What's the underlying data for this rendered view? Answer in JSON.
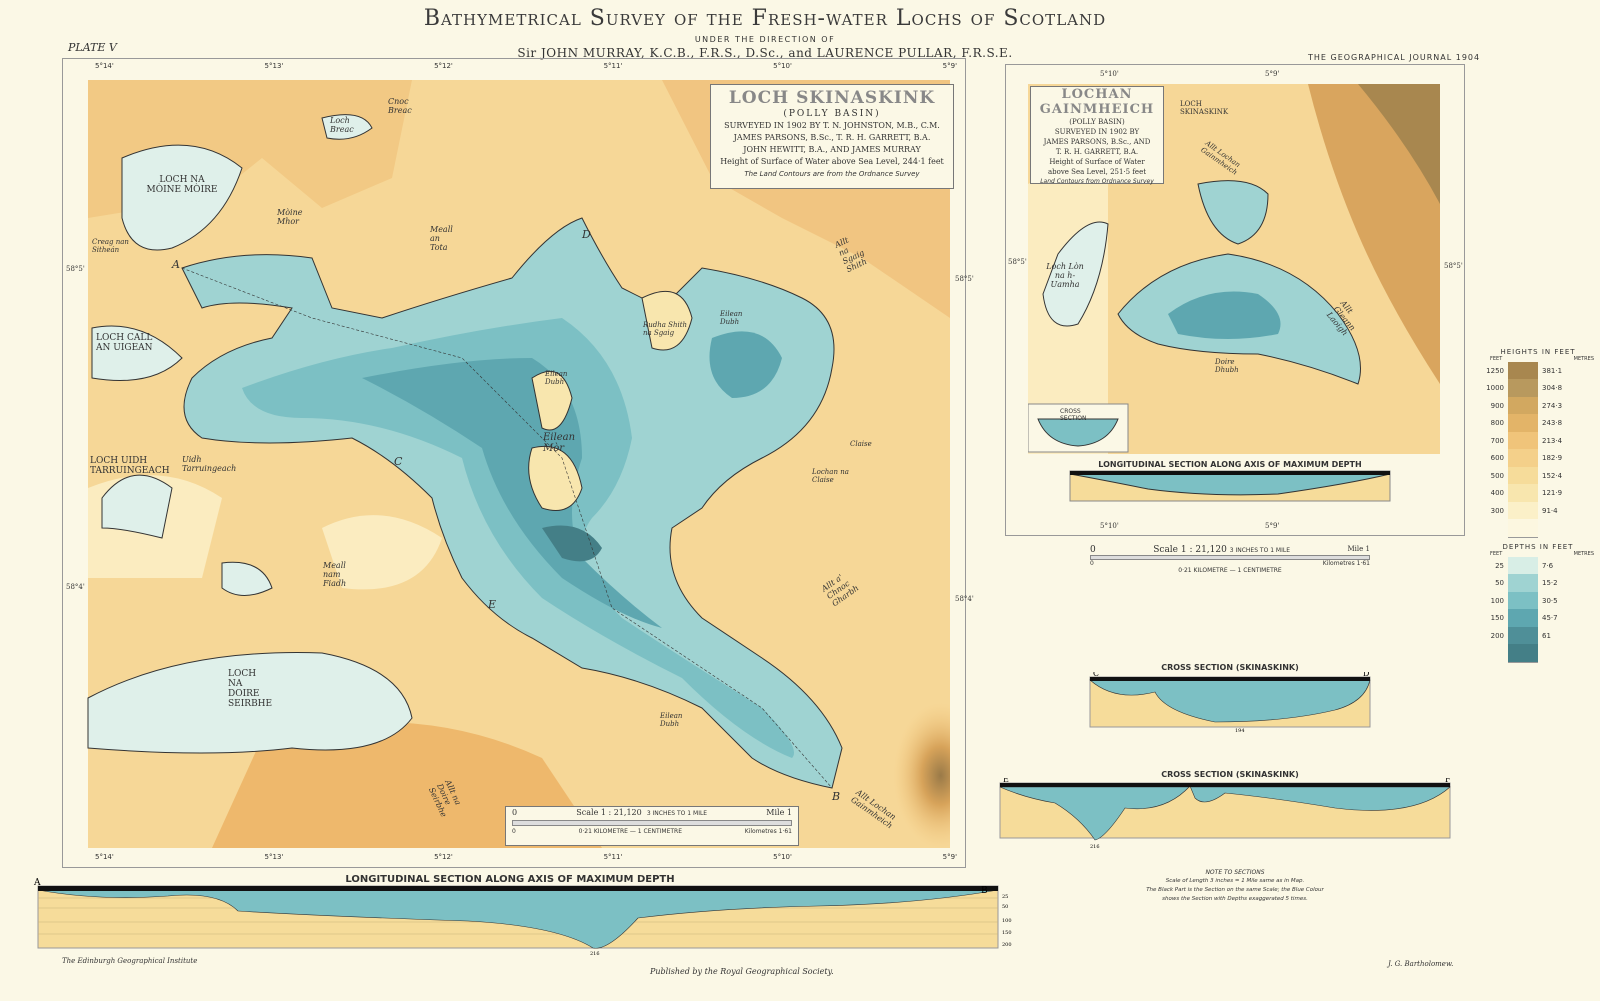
{
  "header": {
    "title": "Bathymetrical Survey of the Fresh-water Lochs of Scotland",
    "direction": "UNDER THE DIRECTION OF",
    "authors": "Sir JOHN MURRAY, K.C.B., F.R.S., D.Sc., and LAURENCE PULLAR, F.R.S.E.",
    "plate": "PLATE V",
    "journal": "THE GEOGRAPHICAL JOURNAL 1904"
  },
  "main_map": {
    "title": "LOCH SKINASKINK",
    "subtitle": "(POLLY BASIN)",
    "survey_lines": [
      "SURVEYED IN 1902 BY T. N. JOHNSTON, M.B., C.M.",
      "JAMES PARSONS, B.Sc., T. R. H. GARRETT, B.A.",
      "JOHN HEWITT, B.A., AND JAMES MURRAY",
      "Height of Surface of Water above Sea Level, 244·1 feet"
    ],
    "note": "The Land Contours are from the Ordnance Survey",
    "longitudes": [
      "5°14'",
      "5°13'",
      "5°12'",
      "5°11'",
      "5°10'",
      "5°9'"
    ],
    "latitudes": [
      "58°5'",
      "58°4'"
    ],
    "place_names": [
      "Cnoc Breac",
      "Loch Breac",
      "LOCH NA MÒINE MÒIRE",
      "Mòine Mhor",
      "Creag nan Sitheán",
      "Meall an Tota",
      "LOCH CALL AN UIGEAN",
      "LOCH UIDH TARRUINGEACH",
      "Uidh Tarruingeach",
      "Meall nam Fiadh",
      "LOCH NA DOIRE SEIRBHE",
      "Rudha Shith na Sgaig",
      "Eilean Dubh",
      "Eilean Mòr",
      "Eilean Dubh",
      "Eilean Dubh",
      "Claise",
      "Lochan na Claise",
      "Allt na Sgaig Shith",
      "Allt a' Chnoc Gharbh",
      "Allt na Doire Seirbhe",
      "Allt Lochan Gainmheich"
    ],
    "section_points": [
      "A",
      "B",
      "C",
      "D",
      "E"
    ],
    "scale": {
      "label": "Scale 1 : 21,120",
      "inches": "3 INCHES TO 1 MILE",
      "mile0": "0",
      "mile1": "Mile 1",
      "km0": "0",
      "km": "0·21 KILOMETRE — 1 CENTIMETRE",
      "km1": "Kilometres 1·61"
    }
  },
  "inset_map": {
    "title_line1": "LOCHAN",
    "title_line2": "GAINMHEICH",
    "subtitle": "(POLLY BASIN)",
    "survey_lines": [
      "SURVEYED IN 1902 BY",
      "JAMES PARSONS, B.Sc., AND",
      "T. R. H. GARRETT, B.A.",
      "Height of Surface of Water",
      "above Sea Level, 251·5 feet"
    ],
    "note": "Land Contours from Ordnance Survey",
    "longitudes": [
      "5°10'",
      "5°9'"
    ],
    "latitude": "58°5'",
    "place_names": [
      "LOCH SKINASKINK",
      "Allt Lochan Gainmheich",
      "Loch Lòn na h-Uamha",
      "Allt Gleann Laoigh",
      "Doire Dhubh"
    ],
    "cross_section": "CROSS SECTION",
    "longitudinal": "LONGITUDINAL SECTION ALONG AXIS OF MAXIMUM DEPTH",
    "scale": {
      "label": "Scale 1 : 21,120",
      "inches": "3 INCHES TO 1 MILE",
      "mile0": "0",
      "mile1": "Mile 1",
      "km0": "0",
      "km": "0·21 KILOMETRE — 1 CENTIMETRE",
      "km1": "Kilometres 1·61"
    }
  },
  "legend": {
    "heights_title": "HEIGHTS IN FEET",
    "depths_title": "DEPTHS IN FEET",
    "feet_label": "FEET",
    "metres_label": "METRES",
    "heights": [
      {
        "feet": "1250",
        "metres": "381·1",
        "color": "#a8874f"
      },
      {
        "feet": "1000",
        "metres": "304·8",
        "color": "#b8995e"
      },
      {
        "feet": "900",
        "metres": "274·3",
        "color": "#d2a860"
      },
      {
        "feet": "800",
        "metres": "243·8",
        "color": "#e3b468"
      },
      {
        "feet": "700",
        "metres": "213·4",
        "color": "#f0c47a"
      },
      {
        "feet": "600",
        "metres": "182·9",
        "color": "#f4d08a"
      },
      {
        "feet": "500",
        "metres": "152·4",
        "color": "#f6dc9a"
      },
      {
        "feet": "400",
        "metres": "121·9",
        "color": "#f8e6ae"
      },
      {
        "feet": "300",
        "metres": "91·4",
        "color": "#fbf0c8"
      },
      {
        "feet": "",
        "metres": "",
        "color": "#fcf7e0"
      }
    ],
    "depths": [
      {
        "feet": "25",
        "metres": "7·6",
        "color": "#d8eee6"
      },
      {
        "feet": "50",
        "metres": "15·2",
        "color": "#9fd3d2"
      },
      {
        "feet": "100",
        "metres": "30·5",
        "color": "#7cc0c4"
      },
      {
        "feet": "150",
        "metres": "45·7",
        "color": "#5ea7b0"
      },
      {
        "feet": "200",
        "metres": "61",
        "color": "#4f8f98"
      },
      {
        "feet": "",
        "metres": "",
        "color": "#447f87"
      }
    ]
  },
  "sections": {
    "cross_cd": "CROSS SECTION (SKINASKINK)",
    "cross_ef": "CROSS SECTION (SKINASKINK)",
    "longitudinal": "LONGITUDINAL SECTION ALONG AXIS OF MAXIMUM DEPTH",
    "depth_ticks": [
      "25",
      "50",
      "100",
      "150",
      "200"
    ],
    "max_depth_cd": "194",
    "max_depth_ef": "216",
    "max_depth_long": "216"
  },
  "notes": {
    "title": "NOTE TO SECTIONS",
    "lines": [
      "Scale of Length 3 inches = 1 Mile same as in Map.",
      "The Black Part is the Section on the same Scale; the Blue Colour",
      "shows the Section with Depths exaggerated 5 times."
    ]
  },
  "footer": {
    "left": "The Edinburgh Geographical Institute",
    "center": "Published by the Royal Geographical Society.",
    "right": "J. G. Bartholomew."
  }
}
